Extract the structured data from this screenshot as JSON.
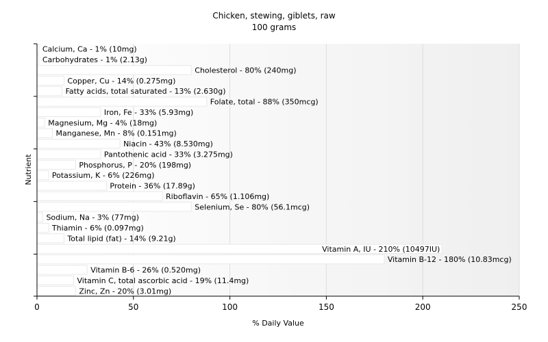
{
  "chart_data": {
    "type": "bar",
    "orientation": "horizontal",
    "title": "Chicken, stewing, giblets, raw",
    "subtitle": "100 grams",
    "xlabel": "% Daily Value",
    "ylabel": "Nutrient",
    "xlim": [
      0,
      250
    ],
    "xticks": [
      0,
      50,
      100,
      150,
      200,
      250
    ],
    "grid": true,
    "colors": {
      "bar": "#ffffff",
      "bar_stroke": "#e8e8e8",
      "grid": "#dddddd",
      "axis": "#000000"
    },
    "bars": [
      {
        "name": "Calcium, Ca",
        "value": 1,
        "label": "Calcium, Ca - 1% (10mg)"
      },
      {
        "name": "Carbohydrates",
        "value": 1,
        "label": "Carbohydrates - 1% (2.13g)"
      },
      {
        "name": "Cholesterol",
        "value": 80,
        "label": "Cholesterol - 80% (240mg)"
      },
      {
        "name": "Copper, Cu",
        "value": 14,
        "label": "Copper, Cu - 14% (0.275mg)"
      },
      {
        "name": "Fatty acids, total saturated",
        "value": 13,
        "label": "Fatty acids, total saturated - 13% (2.630g)"
      },
      {
        "name": "Folate, total",
        "value": 88,
        "label": "Folate, total - 88% (350mcg)"
      },
      {
        "name": "Iron, Fe",
        "value": 33,
        "label": "Iron, Fe - 33% (5.93mg)"
      },
      {
        "name": "Magnesium, Mg",
        "value": 4,
        "label": "Magnesium, Mg - 4% (18mg)"
      },
      {
        "name": "Manganese, Mn",
        "value": 8,
        "label": "Manganese, Mn - 8% (0.151mg)"
      },
      {
        "name": "Niacin",
        "value": 43,
        "label": "Niacin - 43% (8.530mg)"
      },
      {
        "name": "Pantothenic acid",
        "value": 33,
        "label": "Pantothenic acid - 33% (3.275mg)"
      },
      {
        "name": "Phosphorus, P",
        "value": 20,
        "label": "Phosphorus, P - 20% (198mg)"
      },
      {
        "name": "Potassium, K",
        "value": 6,
        "label": "Potassium, K - 6% (226mg)"
      },
      {
        "name": "Protein",
        "value": 36,
        "label": "Protein - 36% (17.89g)"
      },
      {
        "name": "Riboflavin",
        "value": 65,
        "label": "Riboflavin - 65% (1.106mg)"
      },
      {
        "name": "Selenium, Se",
        "value": 80,
        "label": "Selenium, Se - 80% (56.1mcg)"
      },
      {
        "name": "Sodium, Na",
        "value": 3,
        "label": "Sodium, Na - 3% (77mg)"
      },
      {
        "name": "Thiamin",
        "value": 6,
        "label": "Thiamin - 6% (0.097mg)"
      },
      {
        "name": "Total lipid (fat)",
        "value": 14,
        "label": "Total lipid (fat) - 14% (9.21g)"
      },
      {
        "name": "Vitamin A, IU",
        "value": 210,
        "label": "Vitamin A, IU - 210% (10497IU)"
      },
      {
        "name": "Vitamin B-12",
        "value": 180,
        "label": "Vitamin B-12 - 180% (10.83mcg)"
      },
      {
        "name": "Vitamin B-6",
        "value": 26,
        "label": "Vitamin B-6 - 26% (0.520mg)"
      },
      {
        "name": "Vitamin C, total ascorbic acid",
        "value": 19,
        "label": "Vitamin C, total ascorbic acid - 19% (11.4mg)"
      },
      {
        "name": "Zinc, Zn",
        "value": 20,
        "label": "Zinc, Zn - 20% (3.01mg)"
      }
    ]
  }
}
